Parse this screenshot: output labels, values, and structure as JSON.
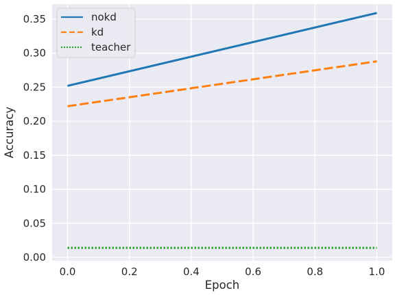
{
  "chart_data": {
    "type": "line",
    "xlabel": "Epoch",
    "ylabel": "Accuracy",
    "xlim": [
      -0.05,
      1.05
    ],
    "ylim": [
      -0.005,
      0.372
    ],
    "xticks": [
      0.0,
      0.2,
      0.4,
      0.6,
      0.8,
      1.0
    ],
    "xtick_labels": [
      "0.0",
      "0.2",
      "0.4",
      "0.6",
      "0.8",
      "1.0"
    ],
    "yticks": [
      0.0,
      0.05,
      0.1,
      0.15,
      0.2,
      0.25,
      0.3,
      0.35
    ],
    "ytick_labels": [
      "0.00",
      "0.05",
      "0.10",
      "0.15",
      "0.20",
      "0.25",
      "0.30",
      "0.35"
    ],
    "grid": true,
    "legend_position": "top-left",
    "x": [
      0.0,
      1.0
    ],
    "series": [
      {
        "name": "nokd",
        "values": [
          0.252,
          0.359
        ],
        "color": "#1f77b4",
        "style": "solid"
      },
      {
        "name": "kd",
        "values": [
          0.222,
          0.288
        ],
        "color": "#ff7f0e",
        "style": "dashed"
      },
      {
        "name": "teacher",
        "values": [
          0.014,
          0.014
        ],
        "color": "#2ca02c",
        "style": "dotted"
      }
    ]
  }
}
